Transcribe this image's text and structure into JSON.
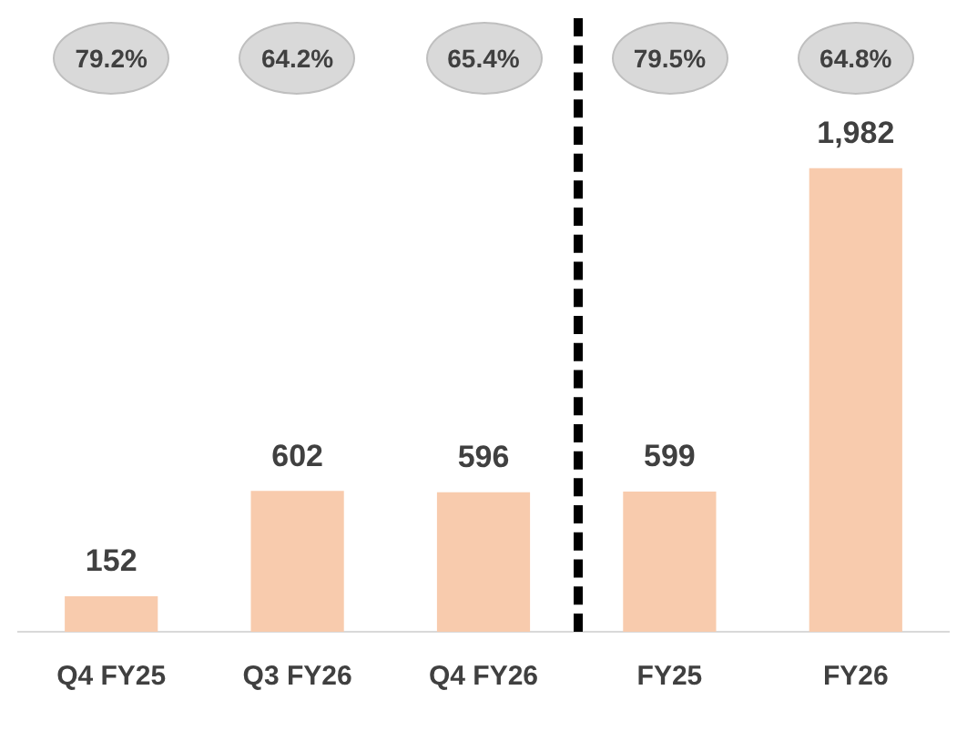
{
  "chart_data": {
    "type": "bar",
    "categories": [
      "Q4 FY25",
      "Q3 FY26",
      "Q4 FY26",
      "FY25",
      "FY26"
    ],
    "values": [
      152,
      602,
      596,
      599,
      1982
    ],
    "value_labels": [
      "152",
      "602",
      "596",
      "599",
      "1,982"
    ],
    "color": "#f8cbad",
    "grid": false,
    "legend": false,
    "tick_labels": "x",
    "annotations": [
      "79.2%",
      "64.2%",
      "65.4%",
      "79.5%",
      "64.8%"
    ]
  }
}
